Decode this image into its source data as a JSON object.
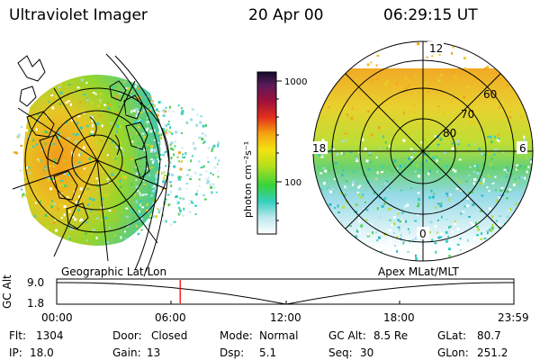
{
  "header": {
    "instrument": "Ultraviolet Imager",
    "date": "20 Apr 00",
    "time": "06:29:15 UT"
  },
  "colorbar": {
    "label": "photon cm⁻²s⁻¹",
    "ticks": [
      "1000",
      "100"
    ]
  },
  "polar_plot": {
    "mlt_labels": [
      "12",
      "18",
      "6",
      "0"
    ],
    "mlat_labels": [
      "60",
      "70",
      "80"
    ]
  },
  "panel_labels": {
    "left": "Geographic Lat/Lon",
    "right": "Apex MLat/MLT"
  },
  "orbit_plot": {
    "ylabel": "GC Alt",
    "yticks": [
      "9.0",
      "1.8"
    ],
    "xticks": [
      "00:00",
      "06:00",
      "12:00",
      "18:00",
      "23:59"
    ],
    "marker_time": "06:29"
  },
  "footer": {
    "flt_label": "Flt:",
    "flt": "1304",
    "door_label": "Door:",
    "door": "Closed",
    "mode_label": "Mode:",
    "mode": "Normal",
    "gcalt_label": "GC Alt:",
    "gcalt": "8.5 Re",
    "glat_label": "GLat:",
    "glat": "80.7",
    "ip_label": "IP:",
    "ip": "18.0",
    "gain_label": "Gain:",
    "gain": "13",
    "dsp_label": "Dsp:",
    "dsp": "5.1",
    "seq_label": "Seq:",
    "seq": "30",
    "glon_label": "GLon:",
    "glon": "251.2"
  },
  "colors": {
    "marker": "#ff0000",
    "grid": "#000000"
  }
}
